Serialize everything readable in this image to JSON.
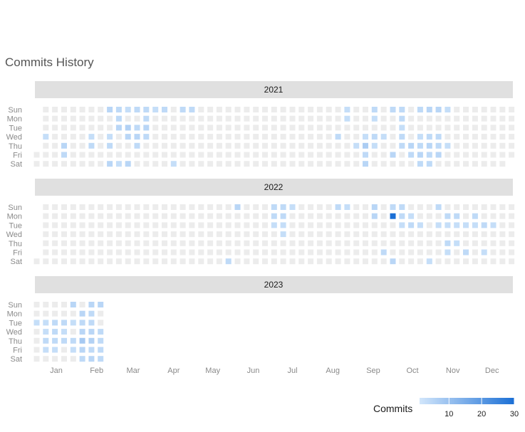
{
  "chart_data": {
    "type": "heatmap",
    "title": "Commits History",
    "panels": [
      {
        "year": "2021",
        "first_weekday": 5,
        "days": 365,
        "commits": [
          [
            5,
            3
          ],
          [
            20,
            5
          ],
          [
            21,
            4
          ],
          [
            40,
            3
          ],
          [
            41,
            4
          ],
          [
            51,
            5
          ],
          [
            54,
            3
          ],
          [
            55,
            4
          ],
          [
            57,
            5
          ],
          [
            58,
            4
          ],
          [
            59,
            4
          ],
          [
            60,
            5
          ],
          [
            64,
            3
          ],
          [
            65,
            3
          ],
          [
            67,
            6
          ],
          [
            68,
            5
          ],
          [
            71,
            5
          ],
          [
            72,
            4
          ],
          [
            74,
            4
          ],
          [
            75,
            5
          ],
          [
            76,
            4
          ],
          [
            79,
            4
          ],
          [
            80,
            4
          ],
          [
            81,
            5
          ],
          [
            82,
            4
          ],
          [
            86,
            3
          ],
          [
            93,
            4
          ],
          [
            106,
            3
          ],
          [
            107,
            4
          ],
          [
            114,
            4
          ],
          [
            252,
            4
          ],
          [
            234,
            3
          ],
          [
            233,
            3
          ],
          [
            268,
            4
          ],
          [
            229,
            4
          ],
          [
            244,
            3
          ],
          [
            253,
            5
          ],
          [
            254,
            4
          ],
          [
            255,
            3
          ],
          [
            250,
            3
          ],
          [
            251,
            7
          ],
          [
            257,
            4
          ],
          [
            258,
            3
          ],
          [
            264,
            3
          ],
          [
            273,
            5
          ],
          [
            275,
            4
          ],
          [
            276,
            4
          ],
          [
            277,
            3
          ],
          [
            278,
            4
          ],
          [
            279,
            4
          ],
          [
            286,
            5
          ],
          [
            287,
            4
          ],
          [
            289,
            4
          ],
          [
            292,
            3
          ],
          [
            293,
            4
          ],
          [
            294,
            5
          ],
          [
            295,
            4
          ],
          [
            296,
            5
          ],
          [
            299,
            4
          ],
          [
            300,
            5
          ],
          [
            301,
            4
          ],
          [
            302,
            4
          ],
          [
            303,
            5
          ],
          [
            306,
            4
          ],
          [
            307,
            4
          ],
          [
            308,
            5
          ],
          [
            310,
            3
          ],
          [
            314,
            3
          ]
        ]
      },
      {
        "year": "2022",
        "first_weekday": 6,
        "days": 365,
        "commits": [
          [
            148,
            5
          ],
          [
            147,
            4
          ],
          [
            190,
            3
          ],
          [
            178,
            3
          ],
          [
            177,
            4
          ],
          [
            176,
            4
          ],
          [
            183,
            4
          ],
          [
            186,
            3
          ],
          [
            185,
            3
          ],
          [
            184,
            4
          ],
          [
            232,
            3
          ],
          [
            225,
            4
          ],
          [
            254,
            5
          ],
          [
            253,
            5
          ],
          [
            267,
            4
          ],
          [
            265,
            4
          ],
          [
            273,
            5
          ],
          [
            276,
            3
          ],
          [
            275,
            4
          ],
          [
            274,
            4
          ],
          [
            275,
            4
          ],
          [
            276,
            3
          ],
          [
            282,
            3
          ],
          [
            283,
            4
          ],
          [
            290,
            3
          ],
          [
            304,
            3
          ],
          [
            310,
            4
          ],
          [
            313,
            4
          ],
          [
            314,
            3
          ],
          [
            317,
            4
          ],
          [
            318,
            3
          ],
          [
            320,
            3
          ],
          [
            325,
            3
          ],
          [
            328,
            4
          ],
          [
            331,
            4
          ],
          [
            332,
            3
          ],
          [
            342,
            3
          ],
          [
            339,
            4
          ],
          [
            346,
            3
          ],
          [
            268,
            30
          ],
          [
            311,
            3
          ],
          [
            302,
            4
          ],
          [
            301,
            3
          ]
        ]
      },
      {
        "year": "2023",
        "first_weekday": 0,
        "days": 56,
        "commits": [
          [
            9,
            3
          ],
          [
            16,
            4
          ],
          [
            23,
            4
          ],
          [
            30,
            3
          ],
          [
            2,
            3
          ],
          [
            10,
            3
          ],
          [
            11,
            4
          ],
          [
            12,
            3
          ],
          [
            17,
            4
          ],
          [
            18,
            4
          ],
          [
            19,
            3
          ],
          [
            24,
            3
          ],
          [
            25,
            4
          ],
          [
            28,
            5
          ],
          [
            32,
            4
          ],
          [
            33,
            3
          ],
          [
            36,
            5
          ],
          [
            37,
            4
          ],
          [
            38,
            5
          ],
          [
            39,
            8
          ],
          [
            40,
            5
          ],
          [
            41,
            4
          ],
          [
            42,
            5
          ],
          [
            43,
            4
          ],
          [
            44,
            4
          ],
          [
            45,
            5
          ],
          [
            46,
            6
          ],
          [
            47,
            4
          ],
          [
            48,
            5
          ],
          [
            49,
            5
          ],
          [
            52,
            4
          ],
          [
            53,
            4
          ],
          [
            54,
            4
          ],
          [
            55,
            4
          ]
        ]
      }
    ],
    "day_labels": [
      "Sun",
      "Mon",
      "Tue",
      "Wed",
      "Thu",
      "Fri",
      "Sat"
    ],
    "month_labels": [
      "Jan",
      "Feb",
      "Mar",
      "Apr",
      "May",
      "Jun",
      "Jul",
      "Aug",
      "Sep",
      "Oct",
      "Nov",
      "Dec"
    ],
    "legend": {
      "title": "Commits",
      "ticks": [
        10,
        20,
        30
      ],
      "range": [
        1,
        30
      ],
      "color_low": "#d2e6fb",
      "color_high": "#1b6fd5",
      "empty_color": "#ececec"
    }
  }
}
